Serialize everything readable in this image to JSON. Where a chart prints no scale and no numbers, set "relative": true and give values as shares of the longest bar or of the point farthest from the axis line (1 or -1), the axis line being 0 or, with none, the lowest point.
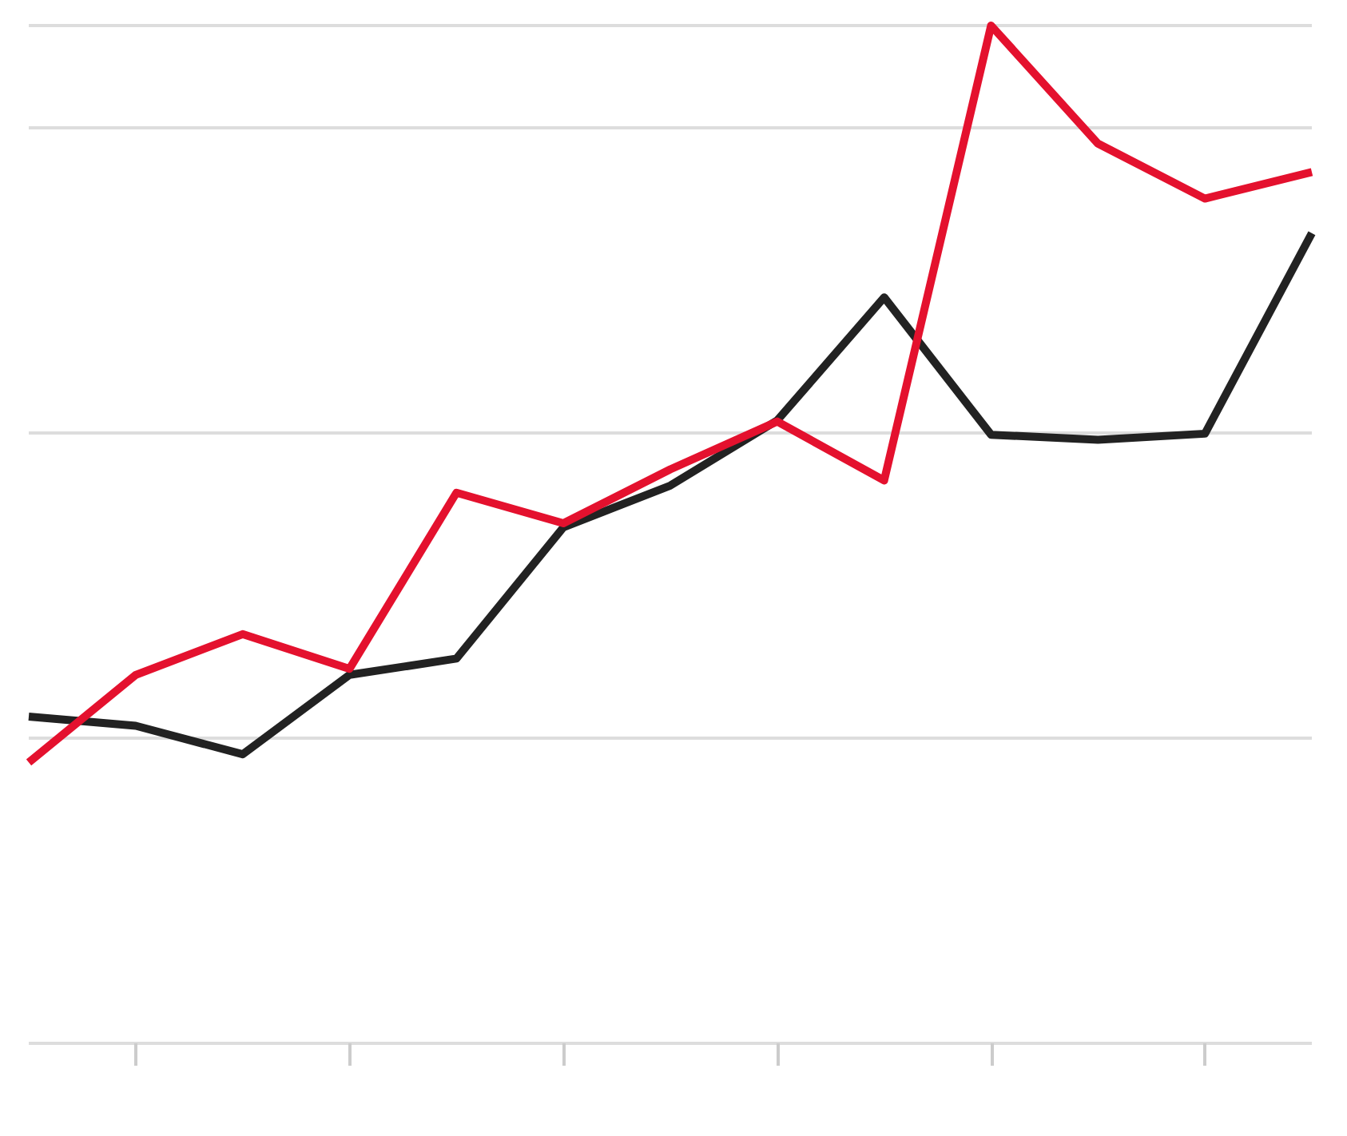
{
  "chart_data": {
    "type": "line",
    "relative": true,
    "grid": "y",
    "categories": [
      null,
      null,
      null,
      null,
      null,
      null,
      null,
      null,
      null,
      null,
      null,
      null,
      null
    ],
    "series": [
      {
        "color": "#222222",
        "values": [
          0.321,
          0.312,
          0.284,
          0.362,
          0.378,
          0.507,
          0.548,
          0.612,
          0.733,
          0.598,
          0.593,
          0.599,
          0.796
        ]
      },
      {
        "color": "#e4112e",
        "values": [
          0.276,
          0.362,
          0.402,
          0.368,
          0.541,
          0.511,
          0.564,
          0.611,
          0.553,
          1,
          0.884,
          0.83,
          0.856
        ]
      }
    ]
  }
}
